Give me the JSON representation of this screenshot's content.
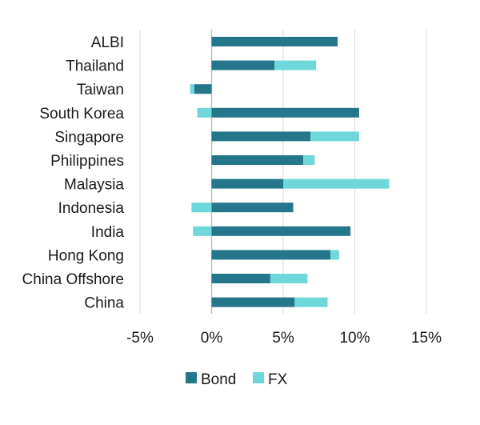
{
  "colors": {
    "bond": "#24768A",
    "fx": "#6DD7D9"
  },
  "chart_data": {
    "type": "bar",
    "orientation": "horizontal",
    "stacked": true,
    "categories": [
      "ALBI",
      "Thailand",
      "Taiwan",
      "South Korea",
      "Singapore",
      "Philippines",
      "Malaysia",
      "Indonesia",
      "India",
      "Hong Kong",
      "China Offshore",
      "China"
    ],
    "series": [
      {
        "name": "Bond",
        "values": [
          8.8,
          4.4,
          -1.2,
          10.3,
          6.9,
          6.4,
          5.0,
          5.7,
          9.7,
          8.3,
          4.1,
          5.8
        ]
      },
      {
        "name": "FX",
        "values": [
          0.0,
          2.9,
          -0.3,
          -1.0,
          3.4,
          0.8,
          7.4,
          -1.4,
          -1.3,
          0.6,
          2.6,
          2.3
        ]
      }
    ],
    "xlim": [
      -5,
      15
    ],
    "xticks": [
      "-5%",
      "0%",
      "5%",
      "10%",
      "15%"
    ],
    "xtick_values": [
      -5,
      0,
      5,
      10,
      15
    ],
    "grid": true,
    "legend": "bottom"
  }
}
